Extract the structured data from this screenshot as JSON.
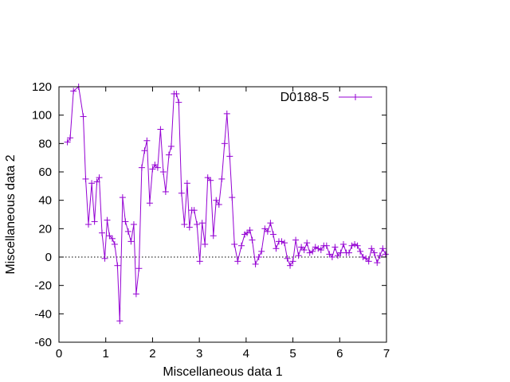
{
  "chart_data": {
    "type": "line",
    "xlabel": "Miscellaneous data 1",
    "ylabel": "Miscellaneous data 2",
    "xlim": [
      0,
      7
    ],
    "ylim": [
      -60,
      120
    ],
    "x_ticks": [
      0,
      1,
      2,
      3,
      4,
      5,
      6,
      7
    ],
    "y_ticks": [
      -60,
      -40,
      -20,
      0,
      20,
      40,
      60,
      80,
      100,
      120
    ],
    "grid": false,
    "zero_line": true,
    "legend_placement": "top-right",
    "series": [
      {
        "name": "D0188-5",
        "color": "#9400d3",
        "marker": "plus",
        "x": [
          0.18,
          0.24,
          0.31,
          0.42,
          0.52,
          0.57,
          0.63,
          0.7,
          0.76,
          0.81,
          0.86,
          0.92,
          0.98,
          1.03,
          1.08,
          1.14,
          1.19,
          1.25,
          1.3,
          1.36,
          1.42,
          1.48,
          1.54,
          1.6,
          1.65,
          1.71,
          1.77,
          1.83,
          1.88,
          1.94,
          2.0,
          2.05,
          2.11,
          2.17,
          2.23,
          2.28,
          2.35,
          2.4,
          2.46,
          2.51,
          2.56,
          2.62,
          2.68,
          2.74,
          2.79,
          2.84,
          2.89,
          2.95,
          3.01,
          3.06,
          3.12,
          3.18,
          3.24,
          3.3,
          3.36,
          3.42,
          3.48,
          3.54,
          3.59,
          3.65,
          3.7,
          3.75,
          3.82,
          3.9,
          3.97,
          4.02,
          4.08,
          4.13,
          4.2,
          4.27,
          4.33,
          4.4,
          4.46,
          4.52,
          4.58,
          4.64,
          4.7,
          4.76,
          4.82,
          4.88,
          4.94,
          5.0,
          5.06,
          5.12,
          5.18,
          5.24,
          5.3,
          5.36,
          5.42,
          5.48,
          5.54,
          5.6,
          5.66,
          5.72,
          5.78,
          5.84,
          5.9,
          5.96,
          6.02,
          6.08,
          6.14,
          6.2,
          6.26,
          6.32,
          6.38,
          6.44,
          6.5,
          6.56,
          6.62,
          6.68,
          6.74,
          6.8,
          6.86,
          6.92,
          6.98
        ],
        "y": [
          81,
          84,
          117,
          120,
          99,
          55,
          23,
          52,
          25,
          53,
          56,
          17,
          -1,
          26,
          15,
          13,
          9,
          -6,
          -45,
          42,
          25,
          18,
          11,
          23,
          -26,
          -8,
          63,
          75,
          82,
          38,
          62,
          65,
          63,
          90,
          60,
          46,
          72,
          78,
          115,
          115,
          109,
          45,
          23,
          52,
          21,
          33,
          33,
          23,
          -3,
          24,
          9,
          56,
          54,
          15,
          40,
          37,
          55,
          80,
          101,
          71,
          42,
          9,
          -3,
          8,
          16,
          17,
          19,
          12,
          -5,
          0,
          4,
          20,
          18,
          24,
          16,
          6,
          11,
          11,
          10,
          -1,
          -6,
          -3,
          12,
          1,
          7,
          5,
          10,
          3,
          4,
          7,
          6,
          5,
          8,
          8,
          2,
          0,
          7,
          1,
          3,
          9,
          3,
          3,
          8,
          9,
          8,
          4,
          0,
          -1,
          -3,
          6,
          3,
          -4,
          1,
          6,
          2
        ]
      }
    ]
  }
}
